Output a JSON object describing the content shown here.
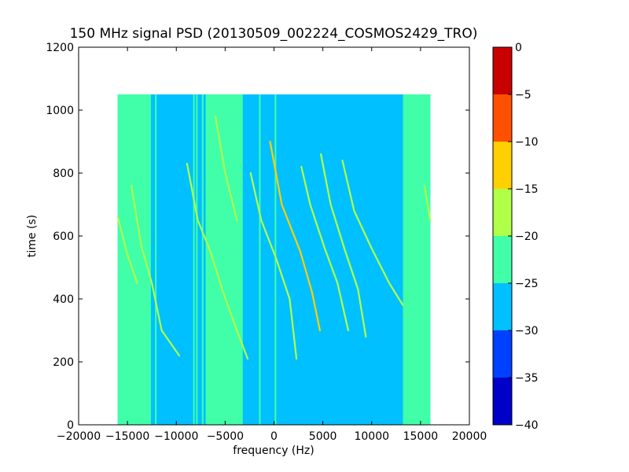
{
  "chart_data": {
    "type": "heatmap",
    "title": "150 MHz signal PSD (20130509_002224_COSMOS2429_TRO)",
    "xlabel": "frequency (Hz)",
    "ylabel": "time (s)",
    "xlim": [
      -20000,
      20000
    ],
    "ylim": [
      0,
      1200
    ],
    "xticks": [
      -20000,
      -15000,
      -10000,
      -5000,
      0,
      5000,
      10000,
      15000,
      20000
    ],
    "xtick_labels": [
      "−20000",
      "−15000",
      "−10000",
      "−5000",
      "0",
      "5000",
      "10000",
      "15000",
      "20000"
    ],
    "yticks": [
      0,
      200,
      400,
      600,
      800,
      1000,
      1200
    ],
    "ytick_labels": [
      "0",
      "200",
      "400",
      "600",
      "800",
      "1000",
      "1200"
    ],
    "data_extent": {
      "x": [
        -16000,
        16000
      ],
      "y": [
        0,
        1050
      ]
    },
    "background_level": -27.5,
    "bands": [
      {
        "x": [
          -16000,
          -13600
        ],
        "level": -22.5
      },
      {
        "x": [
          -13600,
          -12600
        ],
        "level": -22.5
      },
      {
        "x": [
          -7000,
          -3200
        ],
        "level": -22.5
      },
      {
        "x": [
          13200,
          16000
        ],
        "level": -22.5
      }
    ],
    "vertical_lines": [
      {
        "x": -12100,
        "level": -22.5
      },
      {
        "x": -8200,
        "level": -22.5
      },
      {
        "x": -7900,
        "level": -22.5
      },
      {
        "x": -7300,
        "level": -22.5
      },
      {
        "x": -1450,
        "level": -22.5
      },
      {
        "x": 150,
        "level": -22.5
      }
    ],
    "tracks": [
      {
        "level": -17.5,
        "points": [
          [
            -16000,
            660
          ],
          [
            -15000,
            540
          ],
          [
            -14000,
            450
          ]
        ]
      },
      {
        "level": -17.5,
        "points": [
          [
            -14600,
            760
          ],
          [
            -13600,
            570
          ],
          [
            -12500,
            450
          ],
          [
            -11500,
            300
          ],
          [
            -9700,
            220
          ]
        ]
      },
      {
        "level": -17.5,
        "points": [
          [
            -8900,
            830
          ],
          [
            -7800,
            650
          ],
          [
            -6500,
            550
          ],
          [
            -5200,
            420
          ],
          [
            -3800,
            300
          ],
          [
            -2700,
            210
          ]
        ]
      },
      {
        "level": -17.5,
        "points": [
          [
            -6000,
            980
          ],
          [
            -5000,
            800
          ],
          [
            -3800,
            650
          ]
        ]
      },
      {
        "level": -17.5,
        "points": [
          [
            -2400,
            800
          ],
          [
            -1300,
            650
          ],
          [
            200,
            530
          ],
          [
            1600,
            400
          ],
          [
            2300,
            210
          ]
        ]
      },
      {
        "level": -12.5,
        "points": [
          [
            -400,
            900
          ],
          [
            800,
            700
          ],
          [
            2700,
            550
          ],
          [
            3900,
            420
          ],
          [
            4700,
            300
          ]
        ]
      },
      {
        "level": -17.5,
        "points": [
          [
            2800,
            820
          ],
          [
            3700,
            700
          ],
          [
            5200,
            560
          ],
          [
            6500,
            450
          ],
          [
            7600,
            300
          ]
        ]
      },
      {
        "level": -17.5,
        "points": [
          [
            4800,
            860
          ],
          [
            5800,
            700
          ],
          [
            7200,
            560
          ],
          [
            8600,
            430
          ],
          [
            9400,
            280
          ]
        ]
      },
      {
        "level": -17.5,
        "points": [
          [
            7000,
            840
          ],
          [
            8200,
            680
          ],
          [
            10000,
            560
          ],
          [
            11800,
            450
          ],
          [
            13200,
            380
          ]
        ]
      },
      {
        "level": -17.5,
        "points": [
          [
            15400,
            760
          ],
          [
            16000,
            650
          ]
        ]
      }
    ],
    "colorbar": {
      "levels": [
        -40,
        -35,
        -30,
        -25,
        -20,
        -15,
        -10,
        -5,
        0
      ],
      "tick_labels": [
        "−40",
        "−35",
        "−30",
        "−25",
        "−20",
        "−15",
        "−10",
        "−5",
        "0"
      ],
      "colors": [
        "#0000c8",
        "#0040ff",
        "#00c0ff",
        "#40ffa8",
        "#b0ff48",
        "#ffd000",
        "#ff5000",
        "#c80000"
      ]
    }
  }
}
